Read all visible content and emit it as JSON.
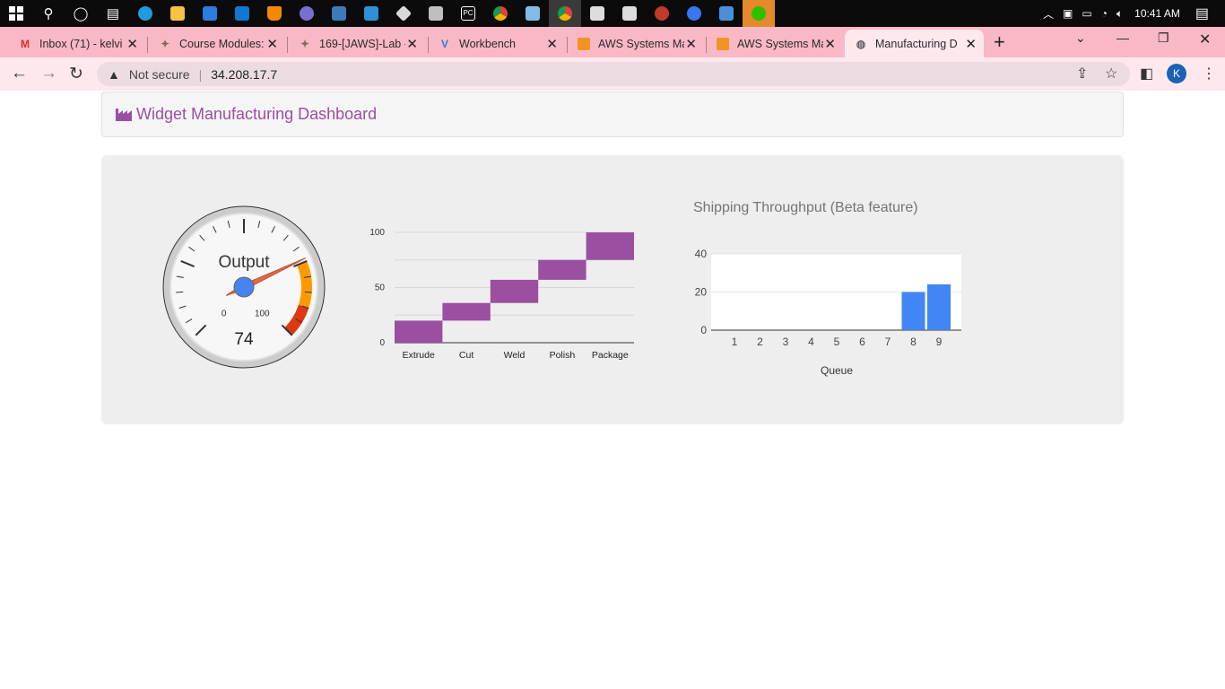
{
  "taskbar": {
    "icons": [
      "windows-start",
      "search",
      "cortana",
      "task-view",
      "edge",
      "file-explorer",
      "microsoft-store",
      "mail",
      "vlc",
      "app",
      "app",
      "vs-code",
      "git",
      "app",
      "pycharm",
      "chrome",
      "notepad",
      "chrome",
      "virtualbox",
      "virtualbox",
      "app",
      "signal",
      "app",
      "wechat"
    ],
    "time": "10:41 AM"
  },
  "browser": {
    "tabs": [
      {
        "title": "Inbox (71) - kelvi",
        "icon": "gmail-icon"
      },
      {
        "title": "Course Modules:",
        "icon": "canvas-icon"
      },
      {
        "title": "169-[JAWS]-Lab -",
        "icon": "canvas-icon"
      },
      {
        "title": "Workbench",
        "icon": "vocareum-icon"
      },
      {
        "title": "AWS Systems Ma",
        "icon": "aws-icon"
      },
      {
        "title": "AWS Systems Ma",
        "icon": "aws-icon"
      },
      {
        "title": "Manufacturing D",
        "icon": "globe-icon",
        "active": true
      }
    ],
    "security_label": "Not secure",
    "url": "34.208.17.7",
    "profile_initial": "K"
  },
  "dashboard": {
    "title": "Widget Manufacturing Dashboard",
    "accent_color": "#9b4fa0"
  },
  "chart_data": [
    {
      "type": "gauge",
      "label": "Output",
      "value": 74,
      "min": 0,
      "max": 100,
      "min_label": "0",
      "max_label": "100",
      "bands": [
        {
          "from": 75,
          "to": 90,
          "color": "#ff9900"
        },
        {
          "from": 90,
          "to": 100,
          "color": "#dc3912"
        }
      ]
    },
    {
      "type": "bar",
      "subtype": "waterfall",
      "categories": [
        "Extrude",
        "Cut",
        "Weld",
        "Polish",
        "Package"
      ],
      "ranges": [
        [
          0,
          20
        ],
        [
          20,
          36
        ],
        [
          36,
          57
        ],
        [
          57,
          75
        ],
        [
          75,
          100
        ]
      ],
      "ylim": [
        0,
        100
      ],
      "yticks": [
        "0",
        "50",
        "100"
      ],
      "color": "#9b4fa0"
    },
    {
      "type": "bar",
      "title": "Shipping Throughput (Beta feature)",
      "xlabel": "Queue",
      "categories": [
        "1",
        "2",
        "3",
        "4",
        "5",
        "6",
        "7",
        "8",
        "9"
      ],
      "values": [
        0,
        0,
        0,
        0,
        0,
        0,
        0,
        20,
        24
      ],
      "ylim": [
        0,
        40
      ],
      "yticks": [
        "0",
        "20",
        "40"
      ],
      "color": "#4285f4"
    }
  ]
}
